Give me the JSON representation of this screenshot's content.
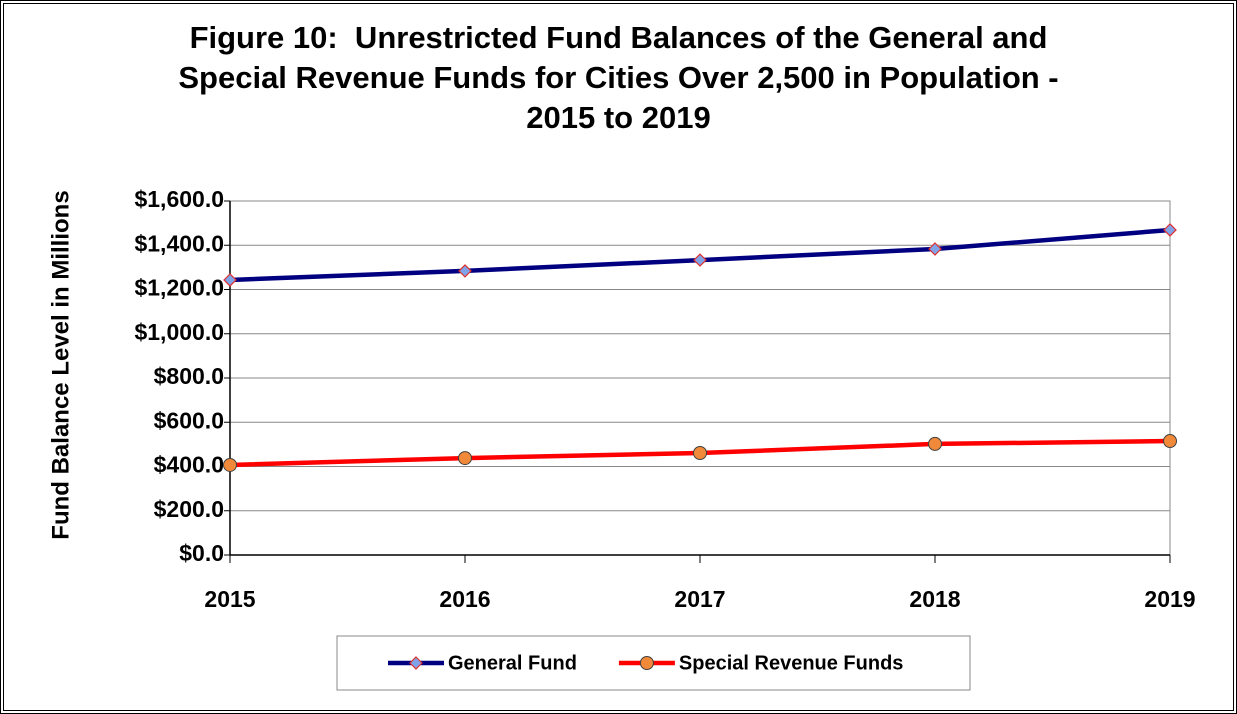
{
  "chart_data": {
    "type": "line",
    "title": "Figure 10:  Unrestricted Fund Balances of the General and\nSpecial Revenue Funds for Cities Over 2,500 in Population -\n2015 to 2019",
    "y_label": "Fund Balance Level in Millions",
    "categories": [
      "2015",
      "2016",
      "2017",
      "2018",
      "2019"
    ],
    "series": [
      {
        "name": "General Fund",
        "color": "#000080",
        "marker": "diamond",
        "marker_color": "#7fa3e6",
        "values": [
          1243,
          1284,
          1333,
          1383,
          1469
        ]
      },
      {
        "name": "Special Revenue Funds",
        "color": "#ff0000",
        "marker": "circle",
        "marker_color": "#f0893a",
        "values": [
          407,
          438,
          461,
          502,
          515
        ]
      }
    ],
    "ylim": [
      0,
      1600
    ],
    "yticks": [
      {
        "value": 0,
        "label": "$0.0"
      },
      {
        "value": 200,
        "label": "$200.0"
      },
      {
        "value": 400,
        "label": "$400.0"
      },
      {
        "value": 600,
        "label": "$600.0"
      },
      {
        "value": 800,
        "label": "$800.0"
      },
      {
        "value": 1000,
        "label": "$1,000.0"
      },
      {
        "value": 1200,
        "label": "$1,200.0"
      },
      {
        "value": 1400,
        "label": "$1,400.0"
      },
      {
        "value": 1600,
        "label": "$1,600.0"
      }
    ],
    "grid": true,
    "legend": "bottom"
  }
}
